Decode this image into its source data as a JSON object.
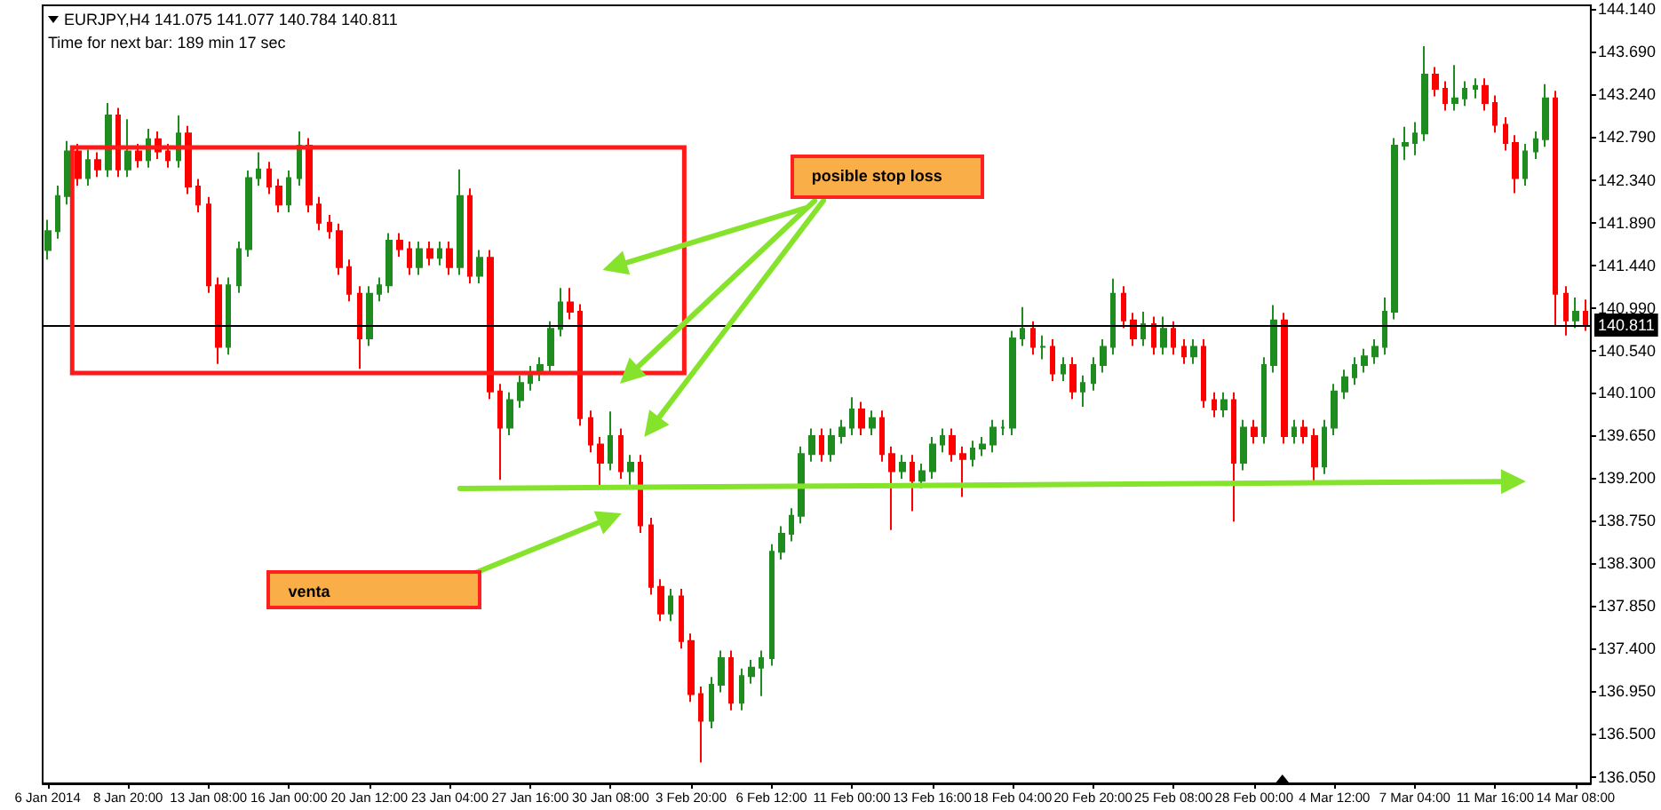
{
  "chart_data": {
    "type": "candlestick",
    "categories": [
      "6 Jan 2014",
      null,
      null,
      null,
      null,
      null,
      null,
      null,
      "8 Jan 20:00",
      null,
      null,
      null,
      null,
      null,
      null,
      null,
      "13 Jan 08:00",
      null,
      null,
      null,
      null,
      null,
      null,
      null,
      "16 Jan 00:00",
      null,
      null,
      null,
      null,
      null,
      null,
      null,
      "20 Jan 12:00",
      null,
      null,
      null,
      null,
      null,
      null,
      null,
      "23 Jan 04:00",
      null,
      null,
      null,
      null,
      null,
      null,
      null,
      "27 Jan 16:00",
      null,
      null,
      null,
      null,
      null,
      null,
      null,
      "30 Jan 08:00",
      null,
      null,
      null,
      null,
      null,
      null,
      null,
      "3 Feb 20:00",
      null,
      null,
      null,
      null,
      null,
      null,
      null,
      "6 Feb 12:00",
      null,
      null,
      null,
      null,
      null,
      null,
      null,
      "11 Feb 00:00",
      null,
      null,
      null,
      null,
      null,
      null,
      null,
      "13 Feb 16:00",
      null,
      null,
      null,
      null,
      null,
      null,
      null,
      "18 Feb 04:00",
      null,
      null,
      null,
      null,
      null,
      null,
      null,
      "20 Feb 20:00",
      null,
      null,
      null,
      null,
      null,
      null,
      null,
      "25 Feb 08:00",
      null,
      null,
      null,
      null,
      null,
      null,
      null,
      "28 Feb 00:00",
      null,
      null,
      null,
      null,
      null,
      null,
      null,
      "4 Mar 12:00",
      null,
      null,
      null,
      null,
      null,
      null,
      null,
      "7 Mar 04:00",
      null,
      null,
      null,
      null,
      null,
      null,
      null,
      "11 Mar 16:00",
      null,
      null,
      null,
      null,
      null,
      null,
      null,
      "14 Mar 08:00",
      null
    ],
    "ohlc": [
      [
        141.6,
        141.92,
        141.5,
        141.8
      ],
      [
        141.8,
        142.28,
        141.72,
        142.17
      ],
      [
        142.17,
        142.75,
        142.08,
        142.64
      ],
      [
        142.64,
        142.72,
        142.28,
        142.36
      ],
      [
        142.36,
        142.66,
        142.28,
        142.55
      ],
      [
        142.55,
        142.63,
        142.37,
        142.45
      ],
      [
        142.45,
        143.15,
        142.37,
        143.02
      ],
      [
        143.02,
        143.1,
        142.37,
        142.45
      ],
      [
        142.45,
        142.98,
        142.37,
        142.64
      ],
      [
        142.64,
        142.72,
        142.47,
        142.55
      ],
      [
        142.55,
        142.88,
        142.47,
        142.77
      ],
      [
        142.77,
        142.85,
        142.56,
        142.64
      ],
      [
        142.64,
        142.72,
        142.47,
        142.55
      ],
      [
        142.55,
        143.02,
        142.47,
        142.83
      ],
      [
        142.83,
        142.91,
        142.19,
        142.27
      ],
      [
        142.27,
        142.35,
        142.0,
        142.08
      ],
      [
        142.08,
        142.16,
        141.15,
        141.23
      ],
      [
        141.23,
        141.31,
        140.4,
        140.58
      ],
      [
        140.58,
        141.31,
        140.5,
        141.23
      ],
      [
        141.23,
        141.69,
        141.15,
        141.61
      ],
      [
        141.61,
        142.44,
        141.53,
        142.36
      ],
      [
        142.36,
        142.63,
        142.28,
        142.45
      ],
      [
        142.45,
        142.53,
        142.19,
        142.27
      ],
      [
        142.27,
        142.35,
        142.0,
        142.08
      ],
      [
        142.08,
        142.44,
        142.0,
        142.36
      ],
      [
        142.36,
        142.85,
        142.28,
        142.7
      ],
      [
        142.7,
        142.78,
        142.0,
        142.08
      ],
      [
        142.08,
        142.16,
        141.81,
        141.89
      ],
      [
        141.89,
        141.97,
        141.72,
        141.8
      ],
      [
        141.8,
        141.88,
        141.34,
        141.42
      ],
      [
        141.42,
        141.5,
        141.06,
        141.14
      ],
      [
        141.14,
        141.22,
        140.35,
        140.67
      ],
      [
        140.67,
        141.22,
        140.59,
        141.14
      ],
      [
        141.14,
        141.31,
        141.06,
        141.23
      ],
      [
        141.23,
        141.78,
        141.15,
        141.7
      ],
      [
        141.7,
        141.78,
        141.53,
        141.61
      ],
      [
        141.61,
        141.69,
        141.34,
        141.42
      ],
      [
        141.42,
        141.69,
        141.34,
        141.61
      ],
      [
        141.61,
        141.69,
        141.44,
        141.52
      ],
      [
        141.52,
        141.69,
        141.44,
        141.61
      ],
      [
        141.61,
        141.69,
        141.34,
        141.42
      ],
      [
        141.42,
        142.45,
        141.34,
        142.17
      ],
      [
        142.17,
        142.25,
        141.25,
        141.33
      ],
      [
        141.33,
        141.6,
        141.25,
        141.52
      ],
      [
        141.52,
        141.6,
        140.03,
        140.11
      ],
      [
        140.11,
        140.19,
        139.18,
        139.73
      ],
      [
        139.73,
        140.1,
        139.65,
        140.02
      ],
      [
        140.02,
        140.28,
        139.94,
        140.2
      ],
      [
        140.2,
        140.38,
        140.12,
        140.3
      ],
      [
        140.3,
        140.47,
        140.22,
        140.39
      ],
      [
        140.39,
        140.85,
        140.31,
        140.77
      ],
      [
        140.77,
        141.2,
        140.69,
        141.05
      ],
      [
        141.05,
        141.2,
        140.87,
        140.95
      ],
      [
        140.95,
        141.03,
        139.75,
        139.83
      ],
      [
        139.83,
        139.91,
        139.47,
        139.55
      ],
      [
        139.55,
        139.63,
        139.1,
        139.36
      ],
      [
        139.36,
        139.9,
        139.28,
        139.64
      ],
      [
        139.64,
        139.72,
        139.19,
        139.27
      ],
      [
        139.27,
        139.44,
        139.1,
        139.36
      ],
      [
        139.36,
        139.44,
        138.62,
        138.7
      ],
      [
        138.7,
        138.78,
        137.97,
        138.05
      ],
      [
        138.05,
        138.13,
        137.69,
        137.77
      ],
      [
        137.77,
        138.03,
        137.69,
        137.95
      ],
      [
        137.95,
        138.03,
        137.4,
        137.48
      ],
      [
        137.48,
        137.56,
        136.84,
        136.92
      ],
      [
        136.92,
        137.0,
        136.2,
        136.64
      ],
      [
        136.64,
        137.1,
        136.56,
        137.02
      ],
      [
        137.02,
        137.38,
        136.94,
        137.3
      ],
      [
        137.3,
        137.38,
        136.75,
        136.83
      ],
      [
        136.83,
        137.19,
        136.75,
        137.11
      ],
      [
        137.11,
        137.28,
        137.03,
        137.2
      ],
      [
        137.2,
        137.38,
        136.9,
        137.3
      ],
      [
        137.3,
        138.5,
        137.22,
        138.42
      ],
      [
        138.42,
        138.69,
        138.34,
        138.61
      ],
      [
        138.61,
        138.88,
        138.53,
        138.8
      ],
      [
        138.8,
        139.53,
        138.72,
        139.45
      ],
      [
        139.45,
        139.72,
        139.37,
        139.64
      ],
      [
        139.64,
        139.72,
        139.37,
        139.45
      ],
      [
        139.45,
        139.72,
        139.37,
        139.64
      ],
      [
        139.64,
        139.81,
        139.56,
        139.73
      ],
      [
        139.73,
        140.05,
        139.65,
        139.92
      ],
      [
        139.92,
        140.0,
        139.65,
        139.73
      ],
      [
        139.73,
        139.91,
        139.65,
        139.83
      ],
      [
        139.83,
        139.91,
        139.37,
        139.45
      ],
      [
        139.45,
        139.53,
        138.65,
        139.27
      ],
      [
        139.27,
        139.44,
        139.19,
        139.36
      ],
      [
        139.36,
        139.44,
        138.85,
        139.17
      ],
      [
        139.17,
        139.35,
        139.09,
        139.27
      ],
      [
        139.27,
        139.63,
        139.19,
        139.55
      ],
      [
        139.55,
        139.72,
        139.47,
        139.64
      ],
      [
        139.64,
        139.72,
        139.37,
        139.45
      ],
      [
        139.45,
        139.53,
        139.0,
        139.4
      ],
      [
        139.4,
        139.59,
        139.32,
        139.51
      ],
      [
        139.51,
        139.63,
        139.43,
        139.55
      ],
      [
        139.55,
        139.81,
        139.47,
        139.73
      ],
      [
        139.73,
        139.81,
        139.65,
        139.73
      ],
      [
        139.73,
        140.75,
        139.65,
        140.67
      ],
      [
        140.67,
        141.0,
        140.59,
        140.77
      ],
      [
        140.77,
        140.85,
        140.5,
        140.58
      ],
      [
        140.58,
        140.7,
        140.45,
        140.58
      ],
      [
        140.58,
        140.66,
        140.22,
        140.3
      ],
      [
        140.3,
        140.47,
        140.22,
        140.39
      ],
      [
        140.39,
        140.47,
        140.03,
        140.11
      ],
      [
        140.11,
        140.28,
        139.95,
        140.2
      ],
      [
        140.2,
        140.47,
        140.12,
        140.39
      ],
      [
        140.39,
        140.66,
        140.31,
        140.58
      ],
      [
        140.58,
        141.3,
        140.5,
        141.14
      ],
      [
        141.14,
        141.22,
        140.78,
        140.86
      ],
      [
        140.86,
        140.94,
        140.59,
        140.67
      ],
      [
        140.67,
        140.95,
        140.59,
        140.82
      ],
      [
        140.82,
        140.9,
        140.5,
        140.58
      ],
      [
        140.58,
        140.9,
        140.5,
        140.77
      ],
      [
        140.77,
        140.85,
        140.5,
        140.58
      ],
      [
        140.58,
        140.66,
        140.4,
        140.48
      ],
      [
        140.48,
        140.66,
        140.4,
        140.58
      ],
      [
        140.58,
        140.66,
        139.94,
        140.02
      ],
      [
        140.02,
        140.1,
        139.84,
        139.92
      ],
      [
        139.92,
        140.1,
        139.84,
        140.02
      ],
      [
        140.02,
        140.1,
        138.74,
        139.36
      ],
      [
        139.36,
        139.81,
        139.28,
        139.73
      ],
      [
        139.73,
        139.81,
        139.56,
        139.64
      ],
      [
        139.64,
        140.47,
        139.56,
        140.39
      ],
      [
        140.39,
        141.02,
        140.31,
        140.86
      ],
      [
        140.86,
        140.94,
        139.56,
        139.64
      ],
      [
        139.64,
        139.81,
        139.56,
        139.73
      ],
      [
        139.73,
        139.81,
        139.56,
        139.64
      ],
      [
        139.64,
        139.72,
        139.15,
        139.32
      ],
      [
        139.32,
        139.81,
        139.24,
        139.73
      ],
      [
        139.73,
        140.19,
        139.65,
        140.11
      ],
      [
        140.11,
        140.34,
        140.03,
        140.26
      ],
      [
        140.26,
        140.47,
        140.18,
        140.39
      ],
      [
        140.39,
        140.56,
        140.31,
        140.48
      ],
      [
        140.48,
        140.66,
        140.4,
        140.58
      ],
      [
        140.58,
        141.1,
        140.5,
        140.95
      ],
      [
        140.95,
        142.78,
        140.87,
        142.7
      ],
      [
        142.7,
        142.9,
        142.55,
        142.73
      ],
      [
        142.73,
        142.95,
        142.6,
        142.83
      ],
      [
        142.83,
        143.75,
        142.75,
        143.45
      ],
      [
        143.45,
        143.53,
        143.22,
        143.3
      ],
      [
        143.3,
        143.38,
        143.07,
        143.15
      ],
      [
        143.15,
        143.55,
        143.07,
        143.2
      ],
      [
        143.2,
        143.38,
        143.12,
        143.3
      ],
      [
        143.3,
        143.41,
        143.2,
        143.33
      ],
      [
        143.33,
        143.41,
        143.07,
        143.15
      ],
      [
        143.15,
        143.23,
        142.84,
        142.92
      ],
      [
        142.92,
        143.0,
        142.65,
        142.73
      ],
      [
        142.73,
        142.81,
        142.2,
        142.36
      ],
      [
        142.36,
        142.72,
        142.28,
        142.64
      ],
      [
        142.64,
        142.85,
        142.56,
        142.77
      ],
      [
        142.77,
        143.35,
        142.69,
        143.2
      ],
      [
        143.2,
        143.28,
        140.8,
        141.14
      ],
      [
        141.14,
        141.22,
        140.7,
        140.86
      ],
      [
        140.86,
        141.1,
        140.78,
        140.95
      ],
      [
        140.95,
        141.08,
        140.75,
        140.81
      ]
    ],
    "colors": [
      "#1e8c1e",
      "#1e8c1e",
      "#1e8c1e",
      "#ff0000",
      "#1e8c1e",
      "#ff0000",
      "#1e8c1e",
      "#ff0000",
      "#1e8c1e",
      "#ff0000",
      "#1e8c1e",
      "#ff0000",
      "#ff0000",
      "#1e8c1e",
      "#ff0000",
      "#ff0000",
      "#ff0000",
      "#ff0000",
      "#1e8c1e",
      "#1e8c1e",
      "#1e8c1e",
      "#1e8c1e",
      "#ff0000",
      "#ff0000",
      "#1e8c1e",
      "#1e8c1e",
      "#ff0000",
      "#ff0000",
      "#ff0000",
      "#ff0000",
      "#ff0000",
      "#ff0000",
      "#1e8c1e",
      "#1e8c1e",
      "#1e8c1e",
      "#ff0000",
      "#ff0000",
      "#1e8c1e",
      "#ff0000",
      "#1e8c1e",
      "#ff0000",
      "#1e8c1e",
      "#ff0000",
      "#1e8c1e",
      "#ff0000",
      "#ff0000",
      "#1e8c1e",
      "#1e8c1e",
      "#1e8c1e",
      "#1e8c1e",
      "#1e8c1e",
      "#1e8c1e",
      "#ff0000",
      "#ff0000",
      "#ff0000",
      "#ff0000",
      "#1e8c1e",
      "#ff0000",
      "#1e8c1e",
      "#ff0000",
      "#ff0000",
      "#ff0000",
      "#1e8c1e",
      "#ff0000",
      "#ff0000",
      "#ff0000",
      "#1e8c1e",
      "#1e8c1e",
      "#ff0000",
      "#1e8c1e",
      "#1e8c1e",
      "#1e8c1e",
      "#1e8c1e",
      "#1e8c1e",
      "#1e8c1e",
      "#1e8c1e",
      "#1e8c1e",
      "#ff0000",
      "#1e8c1e",
      "#1e8c1e",
      "#1e8c1e",
      "#ff0000",
      "#1e8c1e",
      "#ff0000",
      "#ff0000",
      "#1e8c1e",
      "#ff0000",
      "#1e8c1e",
      "#1e8c1e",
      "#1e8c1e",
      "#ff0000",
      "#ff0000",
      "#1e8c1e",
      "#1e8c1e",
      "#1e8c1e",
      "#1e8c1e",
      "#1e8c1e",
      "#1e8c1e",
      "#ff0000",
      "#1e8c1e",
      "#ff0000",
      "#1e8c1e",
      "#ff0000",
      "#1e8c1e",
      "#1e8c1e",
      "#1e8c1e",
      "#1e8c1e",
      "#ff0000",
      "#ff0000",
      "#1e8c1e",
      "#ff0000",
      "#1e8c1e",
      "#ff0000",
      "#ff0000",
      "#1e8c1e",
      "#ff0000",
      "#ff0000",
      "#1e8c1e",
      "#ff0000",
      "#1e8c1e",
      "#ff0000",
      "#1e8c1e",
      "#1e8c1e",
      "#ff0000",
      "#1e8c1e",
      "#ff0000",
      "#ff0000",
      "#1e8c1e",
      "#1e8c1e",
      "#1e8c1e",
      "#1e8c1e",
      "#1e8c1e",
      "#1e8c1e",
      "#1e8c1e",
      "#1e8c1e",
      "#1e8c1e",
      "#1e8c1e",
      "#1e8c1e",
      "#ff0000",
      "#ff0000",
      "#1e8c1e",
      "#1e8c1e",
      "#1e8c1e",
      "#ff0000",
      "#ff0000",
      "#ff0000",
      "#ff0000",
      "#1e8c1e",
      "#1e8c1e",
      "#1e8c1e",
      "#ff0000",
      "#ff0000",
      "#1e8c1e",
      "#ff0000"
    ],
    "ylim": [
      135.98,
      144.18
    ],
    "yticks": [
      {
        "value": 136.05,
        "label": "136.050"
      },
      {
        "value": 136.5,
        "label": "136.500"
      },
      {
        "value": 136.95,
        "label": "136.950"
      },
      {
        "value": 137.4,
        "label": "137.400"
      },
      {
        "value": 137.85,
        "label": "137.850"
      },
      {
        "value": 138.3,
        "label": "138.300"
      },
      {
        "value": 138.75,
        "label": "138.750"
      },
      {
        "value": 139.2,
        "label": "139.200"
      },
      {
        "value": 139.65,
        "label": "139.650"
      },
      {
        "value": 140.1,
        "label": "140.100"
      },
      {
        "value": 140.54,
        "label": "140.540"
      },
      {
        "value": 140.99,
        "label": "140.990"
      },
      {
        "value": 141.44,
        "label": "141.440"
      },
      {
        "value": 141.89,
        "label": "141.890"
      },
      {
        "value": 142.34,
        "label": "142.340"
      },
      {
        "value": 142.79,
        "label": "142.790"
      },
      {
        "value": 143.24,
        "label": "143.240"
      },
      {
        "value": 143.69,
        "label": "143.690"
      },
      {
        "value": 144.14,
        "label": "144.140"
      }
    ],
    "ref_lines": [
      {
        "axis": "y",
        "value": 140.811,
        "label": "140.811",
        "color": "#000000"
      }
    ],
    "annotations": [
      "EURJPY,H4  141.075 141.077 140.784 140.811",
      "Time for next bar: 189 min 17 sec",
      "posible stop loss",
      "venta"
    ]
  }
}
